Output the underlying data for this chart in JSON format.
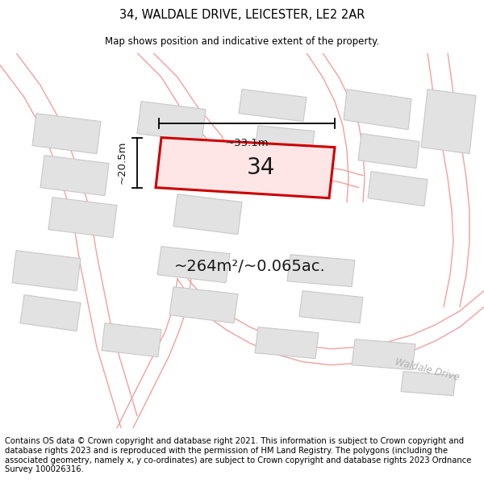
{
  "title": "34, WALDALE DRIVE, LEICESTER, LE2 2AR",
  "subtitle": "Map shows position and indicative extent of the property.",
  "footer": "Contains OS data © Crown copyright and database right 2021. This information is subject to Crown copyright and database rights 2023 and is reproduced with the permission of HM Land Registry. The polygons (including the associated geometry, namely x, y co-ordinates) are subject to Crown copyright and database rights 2023 Ordnance Survey 100026316.",
  "property_label": "34",
  "area_label": "~264m²/~0.065ac.",
  "dim_width_label": "~33.1m",
  "dim_height_label": "~20.5m",
  "street_label": "Waldale Drive",
  "bg_color": "#ffffff",
  "map_bg": "#f7f7f7",
  "building_fill": "#e2e2e2",
  "building_stroke": "#c8c8c8",
  "road_color": "#f0a0a0",
  "prop_stroke": "#cc0000",
  "prop_fill_alpha": 0.08,
  "title_fontsize": 10.5,
  "subtitle_fontsize": 8.5,
  "footer_fontsize": 7.2,
  "label_fontsize": 20,
  "area_fontsize": 14,
  "dim_fontsize": 9.5
}
